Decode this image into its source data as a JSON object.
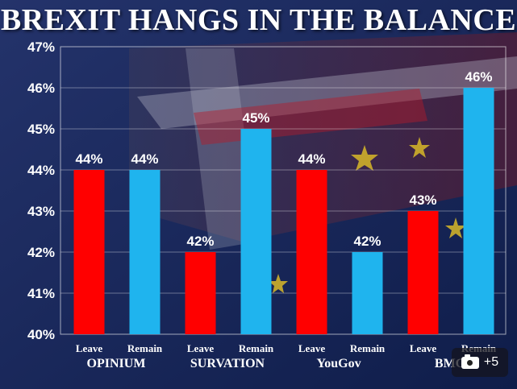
{
  "title": "BREXIT HANGS IN THE BALANCE",
  "photo_badge": {
    "icon": "camera-icon",
    "count": "+5"
  },
  "colors": {
    "leave": "#ff0000",
    "remain": "#1fb4ee",
    "background": "#1a2a55"
  },
  "chart_data": {
    "type": "bar",
    "title": "BREXIT HANGS IN THE BALANCE",
    "ylim": [
      40,
      47
    ],
    "yticks": [
      "40%",
      "41%",
      "42%",
      "43%",
      "44%",
      "45%",
      "46%",
      "47%"
    ],
    "grid": true,
    "groups": [
      {
        "name": "OPINIUM",
        "bars": [
          {
            "label": "Leave",
            "value": 44,
            "text": "44%"
          },
          {
            "label": "Remain",
            "value": 44,
            "text": "44%"
          }
        ]
      },
      {
        "name": "SURVATION",
        "bars": [
          {
            "label": "Leave",
            "value": 42,
            "text": "42%"
          },
          {
            "label": "Remain",
            "value": 45,
            "text": "45%"
          }
        ]
      },
      {
        "name": "YouGov",
        "bars": [
          {
            "label": "Leave",
            "value": 44,
            "text": "44%"
          },
          {
            "label": "Remain",
            "value": 42,
            "text": "42%"
          }
        ]
      },
      {
        "name": "BMG",
        "bars": [
          {
            "label": "Leave",
            "value": 43,
            "text": "43%"
          },
          {
            "label": "Remain",
            "value": 46,
            "text": "46%"
          }
        ]
      }
    ]
  }
}
